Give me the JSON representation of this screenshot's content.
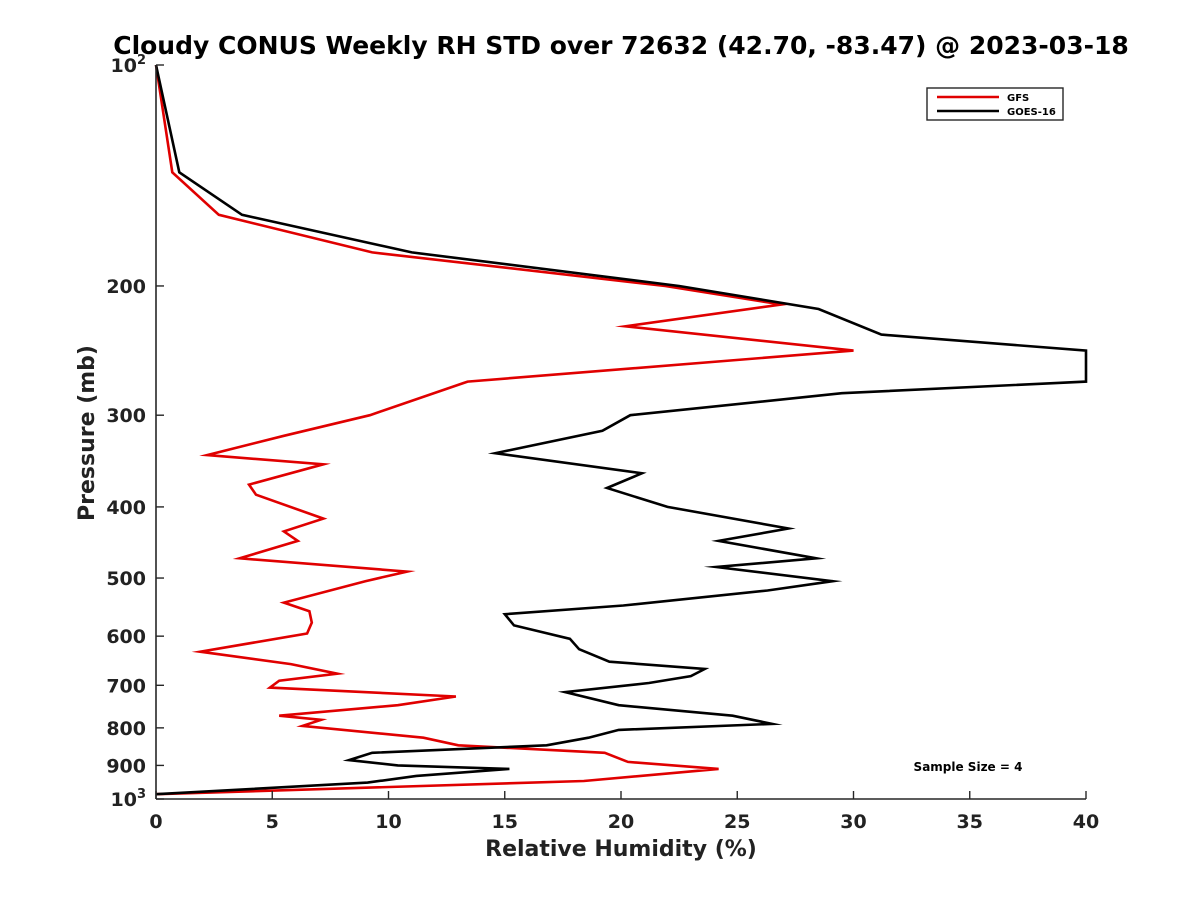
{
  "chart_data": {
    "type": "line",
    "title": "Cloudy CONUS Weekly RH STD over 72632 (42.70, -83.47) @ 2023-03-18",
    "xlabel": "Relative Humidity (%)",
    "ylabel": "Pressure (mb)",
    "xlim": [
      0,
      40
    ],
    "ylim": [
      100,
      1000
    ],
    "yscale": "log",
    "y_reversed": true,
    "x_ticks": [
      "0",
      "5",
      "10",
      "15",
      "20",
      "25",
      "30",
      "35",
      "40"
    ],
    "y_ticks": [
      {
        "value": 100,
        "base": "10",
        "exp": "2"
      },
      {
        "value": 200,
        "label": "200"
      },
      {
        "value": 300,
        "label": "300"
      },
      {
        "value": 400,
        "label": "400"
      },
      {
        "value": 500,
        "label": "500"
      },
      {
        "value": 600,
        "label": "600"
      },
      {
        "value": 700,
        "label": "700"
      },
      {
        "value": 800,
        "label": "800"
      },
      {
        "value": 900,
        "label": "900"
      },
      {
        "value": 1000,
        "base": "10",
        "exp": "3"
      }
    ],
    "legend_position": "top-right",
    "annotation": "Sample Size = 4",
    "series": [
      {
        "name": "GFS",
        "color": "#e00000",
        "points": [
          [
            0.0,
            100
          ],
          [
            0.7,
            140
          ],
          [
            2.7,
            160
          ],
          [
            9.3,
            180
          ],
          [
            21.9,
            200
          ],
          [
            26.9,
            212
          ],
          [
            20.2,
            227
          ],
          [
            30.0,
            245
          ],
          [
            13.4,
            270
          ],
          [
            9.2,
            300
          ],
          [
            5.5,
            320
          ],
          [
            2.2,
            340
          ],
          [
            7.2,
            350
          ],
          [
            4.0,
            373
          ],
          [
            4.3,
            385
          ],
          [
            7.2,
            415
          ],
          [
            5.5,
            432
          ],
          [
            6.1,
            445
          ],
          [
            3.6,
            470
          ],
          [
            10.8,
            490
          ],
          [
            9.0,
            505
          ],
          [
            5.5,
            540
          ],
          [
            6.6,
            555
          ],
          [
            6.7,
            575
          ],
          [
            6.5,
            595
          ],
          [
            1.9,
            630
          ],
          [
            5.8,
            655
          ],
          [
            7.8,
            675
          ],
          [
            5.3,
            690
          ],
          [
            4.9,
            705
          ],
          [
            12.9,
            725
          ],
          [
            10.4,
            745
          ],
          [
            5.3,
            770
          ],
          [
            7.1,
            780
          ],
          [
            6.3,
            795
          ],
          [
            11.5,
            825
          ],
          [
            13.0,
            845
          ],
          [
            19.3,
            865
          ],
          [
            20.3,
            890
          ],
          [
            24.2,
            910
          ],
          [
            18.4,
            945
          ],
          [
            0.0,
            985
          ]
        ]
      },
      {
        "name": "GOES-16",
        "color": "#000000",
        "points": [
          [
            0.0,
            100
          ],
          [
            1.0,
            140
          ],
          [
            3.7,
            160
          ],
          [
            11.0,
            180
          ],
          [
            22.5,
            200
          ],
          [
            28.5,
            215
          ],
          [
            31.2,
            233
          ],
          [
            40.0,
            245
          ],
          [
            40.0,
            270
          ],
          [
            29.5,
            280
          ],
          [
            20.4,
            300
          ],
          [
            19.2,
            315
          ],
          [
            14.6,
            338
          ],
          [
            20.9,
            360
          ],
          [
            19.4,
            377
          ],
          [
            22.0,
            400
          ],
          [
            27.2,
            428
          ],
          [
            24.2,
            445
          ],
          [
            28.4,
            470
          ],
          [
            24.1,
            483
          ],
          [
            29.1,
            505
          ],
          [
            26.3,
            520
          ],
          [
            20.1,
            545
          ],
          [
            15.0,
            560
          ],
          [
            15.4,
            580
          ],
          [
            17.8,
            605
          ],
          [
            18.2,
            625
          ],
          [
            19.5,
            650
          ],
          [
            23.6,
            665
          ],
          [
            23.0,
            680
          ],
          [
            21.2,
            695
          ],
          [
            17.6,
            715
          ],
          [
            19.9,
            745
          ],
          [
            24.8,
            770
          ],
          [
            26.5,
            790
          ],
          [
            19.9,
            805
          ],
          [
            18.6,
            825
          ],
          [
            16.8,
            845
          ],
          [
            9.3,
            865
          ],
          [
            8.3,
            885
          ],
          [
            10.4,
            900
          ],
          [
            15.2,
            910
          ],
          [
            11.2,
            930
          ],
          [
            9.1,
            950
          ],
          [
            0.0,
            985
          ]
        ]
      }
    ]
  }
}
